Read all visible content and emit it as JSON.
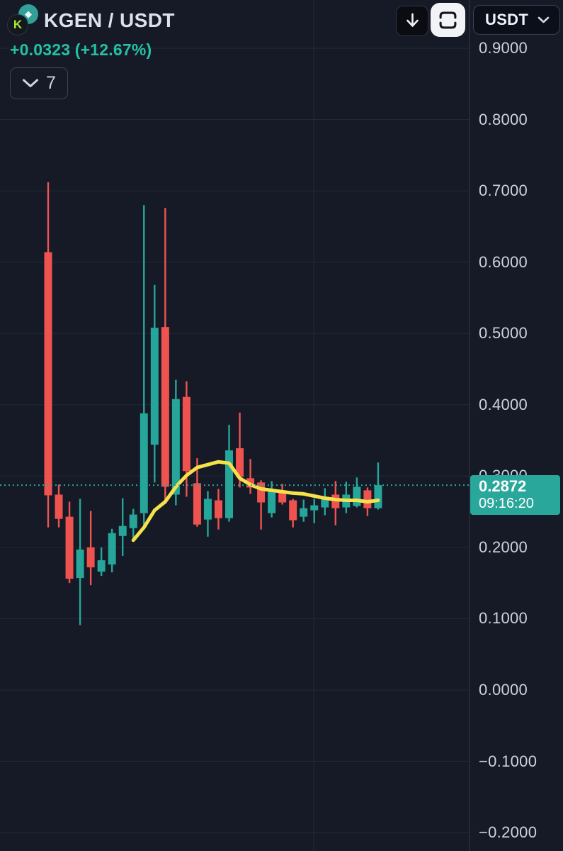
{
  "header": {
    "symbol": "KGEN / USDT",
    "change_text": "+0.0323 (+12.67%)",
    "change_color": "#25c0a5",
    "interval_label": "7",
    "logo_letter": "K",
    "logo_gem": "◆"
  },
  "toolbar": {
    "quote_currency": "USDT"
  },
  "price_scale": {
    "badge": {
      "price": "0.2872",
      "countdown": "09:16:20"
    }
  },
  "colors": {
    "background": "#151a26",
    "up": "#26a69a",
    "down": "#ef5350",
    "ma_line": "#f5e14a",
    "badge_bg": "#2aa79b",
    "axis_text": "#ccd2e0"
  },
  "chart_data": {
    "type": "candlestick",
    "title": "KGEN / USDT",
    "last_price": 0.2872,
    "countdown": "09:16:20",
    "change_abs": "+0.0323",
    "change_pct": "+12.67%",
    "grid": true,
    "price_axis": {
      "visible_range": [
        -0.25,
        0.95
      ],
      "ticks": [
        {
          "value": 0.9,
          "label": "0.9000"
        },
        {
          "value": 0.8,
          "label": "0.8000"
        },
        {
          "value": 0.7,
          "label": "0.7000"
        },
        {
          "value": 0.6,
          "label": "0.6000"
        },
        {
          "value": 0.5,
          "label": "0.5000"
        },
        {
          "value": 0.4,
          "label": "0.4000"
        },
        {
          "value": 0.3,
          "label": "0.3000"
        },
        {
          "value": 0.2,
          "label": "0.2000"
        },
        {
          "value": 0.1,
          "label": "0.1000"
        },
        {
          "value": 0.0,
          "label": "0.0000"
        },
        {
          "value": -0.1,
          "label": "−0.1000"
        },
        {
          "value": -0.2,
          "label": "−0.2000"
        }
      ]
    },
    "candles": [
      {
        "o": 0.614,
        "h": 0.712,
        "l": 0.228,
        "c": 0.273
      },
      {
        "o": 0.274,
        "h": 0.288,
        "l": 0.228,
        "c": 0.24
      },
      {
        "o": 0.243,
        "h": 0.264,
        "l": 0.15,
        "c": 0.156
      },
      {
        "o": 0.157,
        "h": 0.268,
        "l": 0.091,
        "c": 0.197
      },
      {
        "o": 0.2,
        "h": 0.251,
        "l": 0.147,
        "c": 0.172
      },
      {
        "o": 0.166,
        "h": 0.2,
        "l": 0.16,
        "c": 0.182
      },
      {
        "o": 0.176,
        "h": 0.226,
        "l": 0.165,
        "c": 0.22
      },
      {
        "o": 0.216,
        "h": 0.269,
        "l": 0.188,
        "c": 0.23
      },
      {
        "o": 0.227,
        "h": 0.254,
        "l": 0.208,
        "c": 0.246
      },
      {
        "o": 0.248,
        "h": 0.68,
        "l": 0.23,
        "c": 0.388
      },
      {
        "o": 0.344,
        "h": 0.568,
        "l": 0.291,
        "c": 0.508
      },
      {
        "o": 0.509,
        "h": 0.676,
        "l": 0.261,
        "c": 0.285
      },
      {
        "o": 0.274,
        "h": 0.435,
        "l": 0.259,
        "c": 0.408
      },
      {
        "o": 0.411,
        "h": 0.433,
        "l": 0.271,
        "c": 0.307
      },
      {
        "o": 0.29,
        "h": 0.325,
        "l": 0.229,
        "c": 0.232
      },
      {
        "o": 0.239,
        "h": 0.279,
        "l": 0.215,
        "c": 0.268
      },
      {
        "o": 0.266,
        "h": 0.282,
        "l": 0.225,
        "c": 0.241
      },
      {
        "o": 0.241,
        "h": 0.372,
        "l": 0.236,
        "c": 0.336
      },
      {
        "o": 0.339,
        "h": 0.389,
        "l": 0.284,
        "c": 0.299
      },
      {
        "o": 0.297,
        "h": 0.324,
        "l": 0.275,
        "c": 0.284
      },
      {
        "o": 0.291,
        "h": 0.294,
        "l": 0.225,
        "c": 0.263
      },
      {
        "o": 0.248,
        "h": 0.293,
        "l": 0.242,
        "c": 0.281
      },
      {
        "o": 0.28,
        "h": 0.289,
        "l": 0.26,
        "c": 0.263
      },
      {
        "o": 0.266,
        "h": 0.268,
        "l": 0.228,
        "c": 0.238
      },
      {
        "o": 0.243,
        "h": 0.267,
        "l": 0.236,
        "c": 0.255
      },
      {
        "o": 0.252,
        "h": 0.268,
        "l": 0.234,
        "c": 0.259
      },
      {
        "o": 0.256,
        "h": 0.283,
        "l": 0.245,
        "c": 0.271
      },
      {
        "o": 0.274,
        "h": 0.293,
        "l": 0.231,
        "c": 0.255
      },
      {
        "o": 0.256,
        "h": 0.292,
        "l": 0.248,
        "c": 0.274
      },
      {
        "o": 0.258,
        "h": 0.298,
        "l": 0.256,
        "c": 0.285
      },
      {
        "o": 0.28,
        "h": 0.284,
        "l": 0.244,
        "c": 0.255
      },
      {
        "o": 0.255,
        "h": 0.319,
        "l": 0.253,
        "c": 0.2872
      }
    ],
    "ma_line": [
      null,
      null,
      null,
      null,
      null,
      null,
      null,
      null,
      0.21,
      0.228,
      0.252,
      0.264,
      0.285,
      0.301,
      0.312,
      0.316,
      0.32,
      0.318,
      0.297,
      0.288,
      0.282,
      0.28,
      0.278,
      0.276,
      0.275,
      0.272,
      0.269,
      0.267,
      0.266,
      0.266,
      0.264,
      0.266
    ]
  }
}
